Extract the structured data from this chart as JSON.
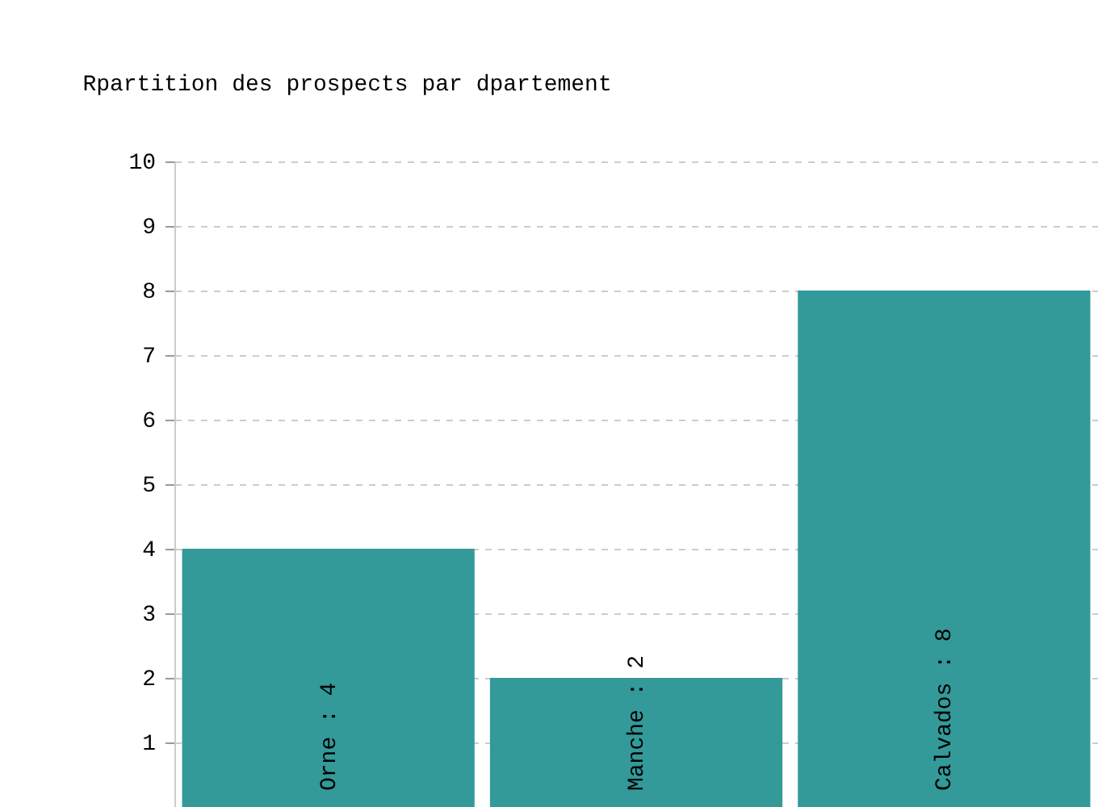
{
  "chart_data": {
    "type": "bar",
    "title": "Rpartition des prospects par dpartement",
    "categories": [
      null,
      null,
      null
    ],
    "values": [
      4,
      2,
      8
    ],
    "value_labels": [
      "Orne : 4",
      "Manche : 2",
      "Calvados : 8"
    ],
    "color": "#339999",
    "ylim": [
      0,
      10
    ],
    "yticks": [
      1,
      2,
      3,
      4,
      5,
      6,
      7,
      8,
      9,
      10
    ],
    "grid": "y"
  }
}
